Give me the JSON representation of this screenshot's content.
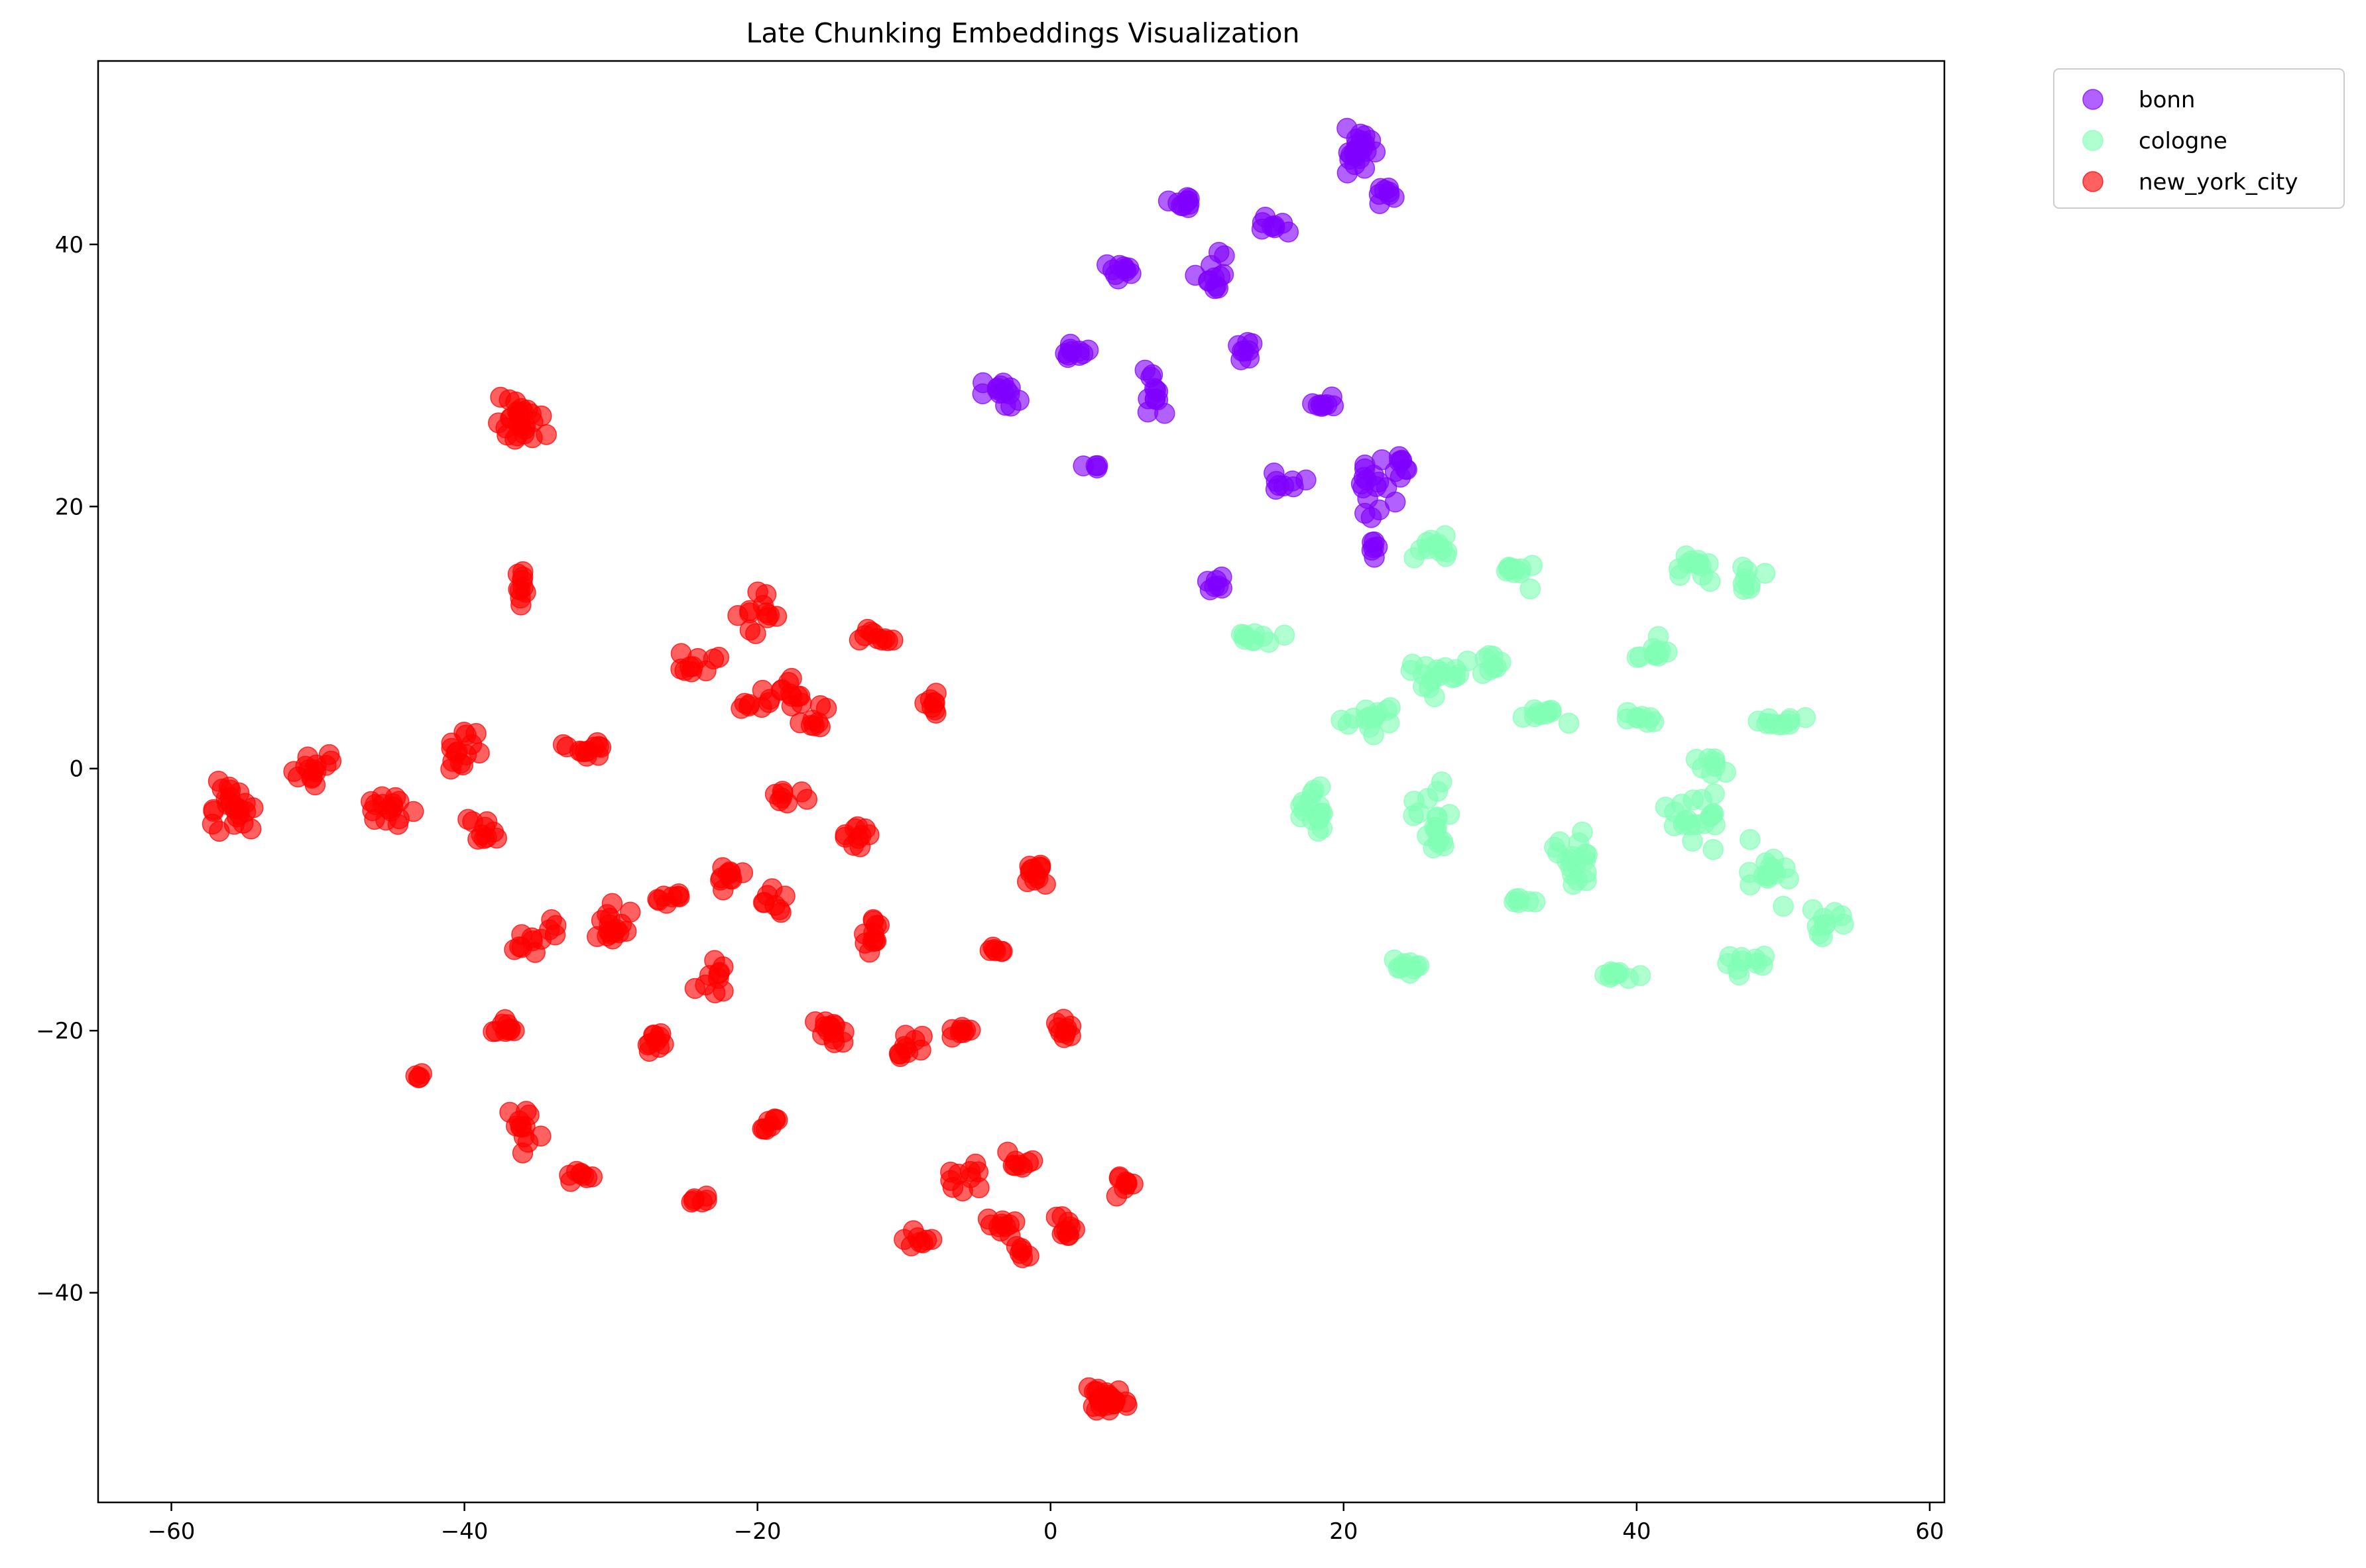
{
  "chart_data": {
    "type": "scatter",
    "title": "Late Chunking Embeddings Visualization",
    "xlabel": "",
    "ylabel": "",
    "xlim": [
      -65,
      61
    ],
    "ylim": [
      -56,
      54
    ],
    "xticks": [
      -60,
      -40,
      -20,
      0,
      20,
      40,
      60
    ],
    "yticks": [
      -40,
      -20,
      0,
      20,
      40
    ],
    "grid": false,
    "legend_position": "outside-top-right",
    "series": [
      {
        "name": "bonn",
        "color": "#8000ff",
        "clusters": [
          [
            21,
            47,
            2.5,
            2.5,
            25
          ],
          [
            23,
            44,
            1.5,
            1.5,
            8
          ],
          [
            9,
            43,
            1.5,
            1,
            10
          ],
          [
            15,
            41.5,
            2,
            0.8,
            8
          ],
          [
            11,
            38,
            1.5,
            2,
            12
          ],
          [
            5,
            38,
            1.5,
            1,
            10
          ],
          [
            1.5,
            32,
            1.2,
            1.5,
            10
          ],
          [
            -3,
            28.5,
            2.5,
            1.5,
            14
          ],
          [
            7,
            28,
            1.2,
            3,
            12
          ],
          [
            13,
            32,
            1,
            1,
            8
          ],
          [
            19,
            28,
            2,
            1,
            8
          ],
          [
            22,
            22,
            2,
            3,
            16
          ],
          [
            16,
            22,
            2,
            1,
            8
          ],
          [
            11,
            14,
            1,
            1,
            7
          ],
          [
            3,
            23,
            1,
            0.5,
            4
          ],
          [
            22,
            17,
            0.6,
            1.5,
            6
          ],
          [
            24,
            23,
            1.5,
            1.5,
            8
          ]
        ]
      },
      {
        "name": "cologne",
        "color": "#80ffb4",
        "clusters": [
          [
            26,
            17,
            2,
            1.5,
            12
          ],
          [
            32,
            15,
            1.5,
            1.5,
            10
          ],
          [
            44,
            15.5,
            3,
            1.5,
            12
          ],
          [
            48,
            14.5,
            2,
            1.5,
            8
          ],
          [
            14,
            10,
            2.5,
            1,
            10
          ],
          [
            26,
            7,
            3,
            2.5,
            18
          ],
          [
            22,
            4,
            2.5,
            2,
            14
          ],
          [
            34,
            4,
            2.5,
            1,
            10
          ],
          [
            40,
            4,
            2,
            1,
            8
          ],
          [
            50,
            3.5,
            2.5,
            1,
            10
          ],
          [
            18,
            -3,
            1.5,
            2.5,
            16
          ],
          [
            26,
            -4,
            2,
            4,
            18
          ],
          [
            36,
            -7,
            2,
            3,
            18
          ],
          [
            44,
            -4,
            2.5,
            3,
            20
          ],
          [
            49,
            -8,
            2.5,
            3,
            16
          ],
          [
            53,
            -12,
            2,
            2,
            10
          ],
          [
            24,
            -15,
            2,
            1,
            10
          ],
          [
            39,
            -16,
            2.5,
            1,
            10
          ],
          [
            47,
            -15,
            2.5,
            1.5,
            10
          ],
          [
            41,
            9,
            2,
            1.5,
            10
          ],
          [
            45,
            0,
            2,
            1,
            8
          ],
          [
            30,
            8,
            1.5,
            1.5,
            8
          ],
          [
            32,
            -10,
            1.5,
            1.5,
            6
          ]
        ]
      },
      {
        "name": "new_york_city",
        "color": "#ff0000",
        "clusters": [
          [
            -36.5,
            26.5,
            2.5,
            2.5,
            26
          ],
          [
            -36,
            14,
            0.6,
            3,
            10
          ],
          [
            -56,
            -3,
            2.5,
            3,
            24
          ],
          [
            -50,
            0,
            2.5,
            2,
            14
          ],
          [
            -45,
            -3,
            2.5,
            2.5,
            16
          ],
          [
            -40,
            1,
            2.5,
            2.5,
            14
          ],
          [
            -38.5,
            -5,
            1.5,
            2,
            10
          ],
          [
            -32,
            1.5,
            2.5,
            1,
            12
          ],
          [
            -35,
            -13,
            2,
            2,
            12
          ],
          [
            -30,
            -12,
            2,
            2.5,
            16
          ],
          [
            -26,
            -10,
            2,
            1,
            8
          ],
          [
            -37,
            -20,
            1.5,
            1,
            10
          ],
          [
            -36,
            -27,
            1.5,
            3,
            12
          ],
          [
            -32,
            -31,
            1.5,
            1,
            8
          ],
          [
            -43,
            -23.5,
            0.5,
            0.5,
            4
          ],
          [
            -24,
            8,
            2,
            1.5,
            10
          ],
          [
            -20,
            12,
            2,
            2,
            12
          ],
          [
            -20,
            5,
            1.5,
            1.5,
            8
          ],
          [
            -18,
            6,
            1.5,
            2,
            10
          ],
          [
            -16,
            4,
            1.5,
            1.5,
            8
          ],
          [
            -12,
            10,
            1.5,
            1,
            10
          ],
          [
            -8,
            5,
            1,
            1.5,
            8
          ],
          [
            -18,
            -2,
            2,
            1,
            8
          ],
          [
            -13,
            -5,
            1.5,
            1.5,
            10
          ],
          [
            -22,
            -8,
            2,
            1.5,
            10
          ],
          [
            -19,
            -10,
            1.5,
            1.5,
            8
          ],
          [
            -23,
            -16,
            1.5,
            3,
            10
          ],
          [
            -27,
            -21,
            1.5,
            1.5,
            10
          ],
          [
            -15,
            -20,
            1.5,
            2,
            14
          ],
          [
            -12,
            -13,
            1,
            2.5,
            12
          ],
          [
            -10,
            -21,
            1.5,
            1.5,
            10
          ],
          [
            -6,
            -20,
            1.5,
            1,
            8
          ],
          [
            -4,
            -14,
            1,
            1,
            6
          ],
          [
            -1,
            -8,
            1.5,
            1.5,
            12
          ],
          [
            1,
            -20,
            1,
            1.5,
            10
          ],
          [
            -2,
            -30,
            2,
            1,
            8
          ],
          [
            -6,
            -31,
            2,
            2,
            10
          ],
          [
            -3,
            -35,
            1.5,
            1,
            10
          ],
          [
            1,
            -35,
            1.5,
            1.5,
            10
          ],
          [
            5,
            -32,
            1,
            1.5,
            8
          ],
          [
            -19,
            -27,
            1,
            1,
            8
          ],
          [
            -24,
            -33,
            1.5,
            0.5,
            6
          ],
          [
            -9,
            -36,
            1.5,
            1,
            8
          ],
          [
            4,
            -48,
            2,
            1.5,
            26
          ],
          [
            -2,
            -37,
            1,
            1,
            6
          ]
        ]
      }
    ]
  }
}
